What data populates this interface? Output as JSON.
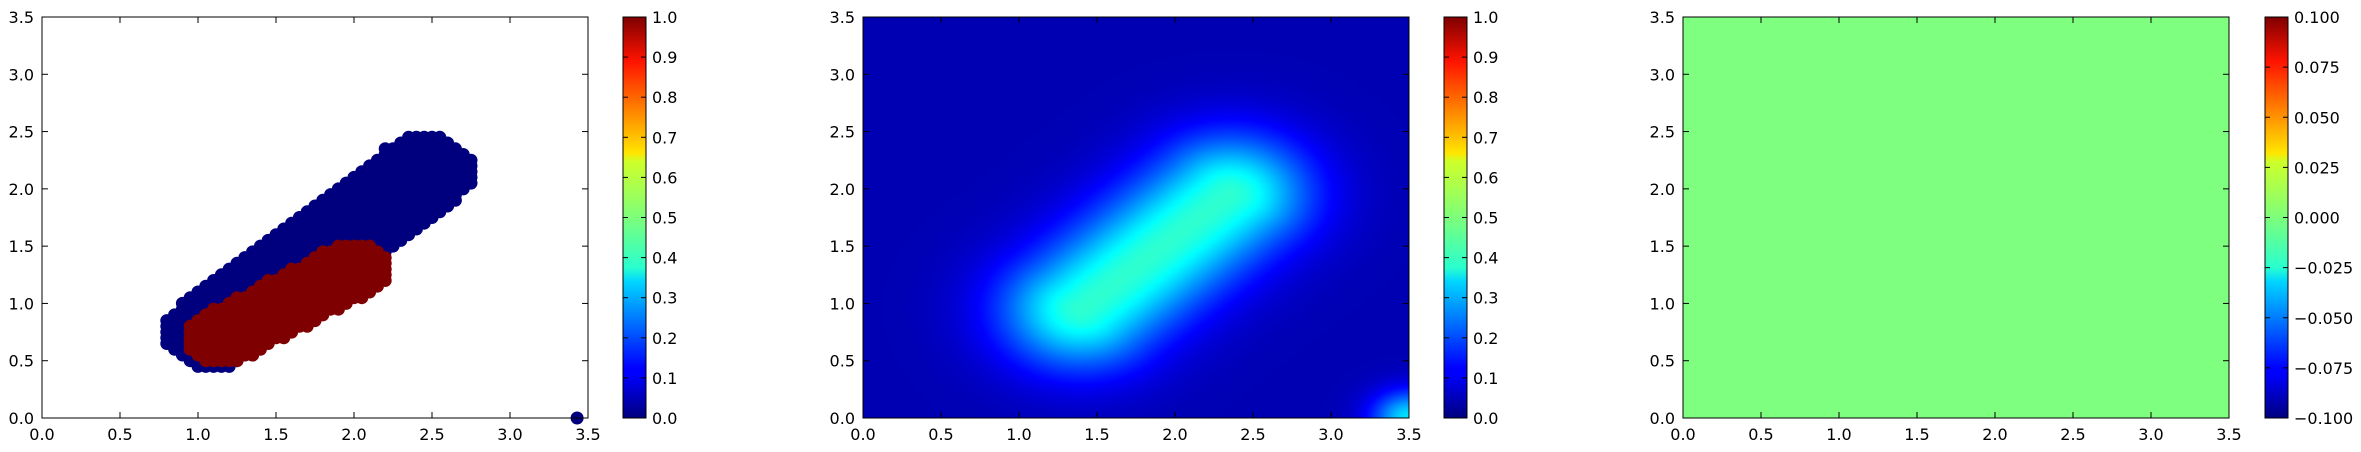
{
  "chart_data": [
    {
      "type": "scatter",
      "xlim": [
        0.0,
        3.5
      ],
      "ylim": [
        0.0,
        3.5
      ],
      "xticks": [
        "0.0",
        "0.5",
        "1.0",
        "1.5",
        "2.0",
        "2.5",
        "3.0",
        "3.5"
      ],
      "yticks": [
        "0.0",
        "0.5",
        "1.0",
        "1.5",
        "2.0",
        "2.5",
        "3.0",
        "3.5"
      ],
      "grid": false,
      "colormap": "jet",
      "clim": [
        0.0,
        1.0
      ],
      "colorbar_ticks": [
        "0.0",
        "0.1",
        "0.2",
        "0.3",
        "0.4",
        "0.5",
        "0.6",
        "0.7",
        "0.8",
        "0.9",
        "1.0"
      ],
      "series": [
        {
          "value": 0.0,
          "color": "#00007f",
          "region": {
            "start": [
              1.1,
              0.75
            ],
            "end": [
              2.45,
              2.15
            ],
            "half_width": 0.32
          },
          "extra_points": [
            [
              3.43,
              0.0
            ]
          ]
        },
        {
          "value": 1.0,
          "color": "#7f0000",
          "region": {
            "start": [
              1.15,
              0.7
            ],
            "end": [
              2.0,
              1.3
            ],
            "half_width": 0.24
          }
        }
      ]
    },
    {
      "type": "heatmap",
      "xlim": [
        0.0,
        3.5
      ],
      "ylim": [
        0.0,
        3.5
      ],
      "xticks": [
        "0.0",
        "0.5",
        "1.0",
        "1.5",
        "2.0",
        "2.5",
        "3.0",
        "3.5"
      ],
      "yticks": [
        "0.0",
        "0.5",
        "1.0",
        "1.5",
        "2.0",
        "2.5",
        "3.0",
        "3.5"
      ],
      "colormap": "jet",
      "clim": [
        0.0,
        1.0
      ],
      "colorbar_ticks": [
        "0.0",
        "0.1",
        "0.2",
        "0.3",
        "0.4",
        "0.5",
        "0.6",
        "0.7",
        "0.8",
        "0.9",
        "1.0"
      ],
      "background_value": 0.05,
      "features": [
        {
          "kind": "ridge",
          "start": [
            1.4,
            0.95
          ],
          "end": [
            2.35,
            1.95
          ],
          "peak": 0.42,
          "sigma": 0.55
        },
        {
          "kind": "corner",
          "at": [
            3.5,
            0.0
          ],
          "peak": 0.3,
          "sigma": 0.25
        }
      ]
    },
    {
      "type": "heatmap",
      "xlim": [
        0.0,
        3.5
      ],
      "ylim": [
        0.0,
        3.5
      ],
      "xticks": [
        "0.0",
        "0.5",
        "1.0",
        "1.5",
        "2.0",
        "2.5",
        "3.0",
        "3.5"
      ],
      "yticks": [
        "0.0",
        "0.5",
        "1.0",
        "1.5",
        "2.0",
        "2.5",
        "3.0",
        "3.5"
      ],
      "colormap": "jet",
      "clim": [
        -0.1,
        0.1
      ],
      "colorbar_ticks": [
        "−0.100",
        "−0.075",
        "−0.050",
        "−0.025",
        "0.000",
        "0.025",
        "0.050",
        "0.075",
        "0.100"
      ],
      "constant_value": 0.0,
      "fill_color": "#7fff7f"
    }
  ]
}
